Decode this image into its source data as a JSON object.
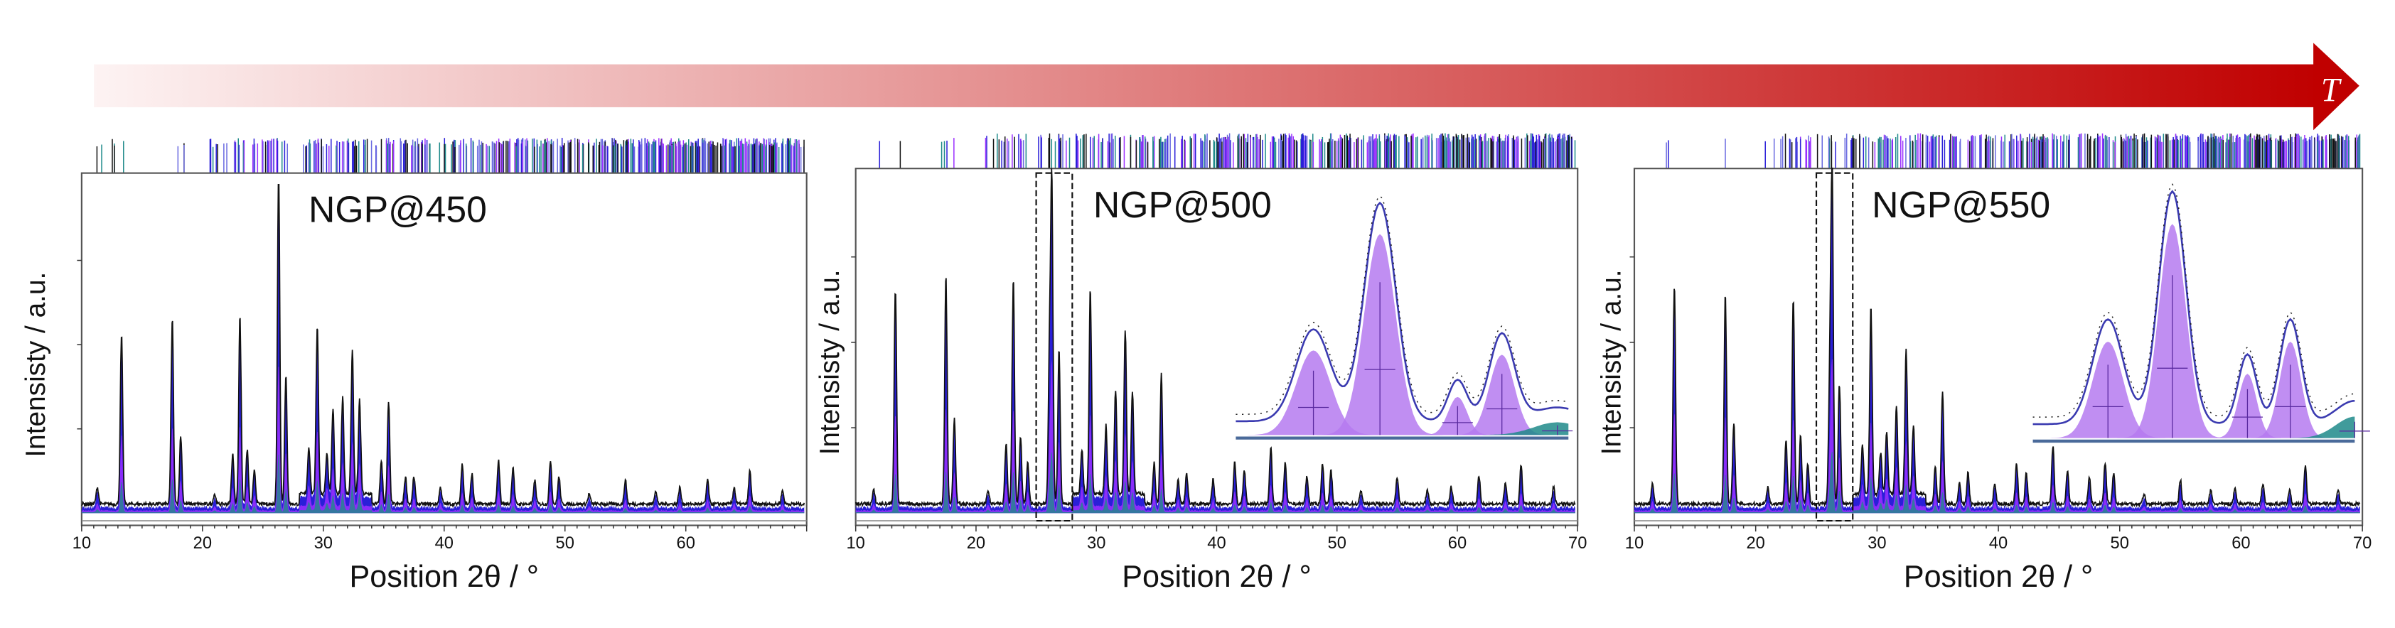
{
  "arrow": {
    "label": "T",
    "color_start": "#fdf3f3",
    "color_end": "#c00000"
  },
  "colors": {
    "observed": "#2a1fd8",
    "phase_a": "#9b30ff",
    "phase_b": "#1e8a8a",
    "line": "#111111",
    "inset_fill": "#b57af0"
  },
  "chart_data": [
    {
      "type": "area",
      "title": "NGP@450",
      "xlabel": "Position 2θ / °",
      "ylabel": "Intensisty / a.u.",
      "xlim": [
        10,
        70
      ],
      "ylim": [
        0,
        1
      ],
      "xticks": [
        "10",
        "20",
        "30",
        "40",
        "50",
        "60"
      ],
      "peaks": [
        [
          11.3,
          0.05
        ],
        [
          13.3,
          0.5
        ],
        [
          17.5,
          0.55
        ],
        [
          18.2,
          0.2
        ],
        [
          21,
          0.03
        ],
        [
          22.5,
          0.15
        ],
        [
          23.1,
          0.56
        ],
        [
          23.7,
          0.16
        ],
        [
          24.3,
          0.1
        ],
        [
          26.3,
          0.97
        ],
        [
          26.9,
          0.38
        ],
        [
          28.8,
          0.14
        ],
        [
          29.5,
          0.5
        ],
        [
          30.3,
          0.12
        ],
        [
          30.8,
          0.25
        ],
        [
          31.6,
          0.29
        ],
        [
          32.4,
          0.43
        ],
        [
          33.0,
          0.28
        ],
        [
          34.8,
          0.13
        ],
        [
          35.4,
          0.3
        ],
        [
          36.8,
          0.08
        ],
        [
          37.5,
          0.08
        ],
        [
          39.7,
          0.05
        ],
        [
          41.5,
          0.12
        ],
        [
          42.3,
          0.09
        ],
        [
          44.5,
          0.13
        ],
        [
          45.7,
          0.11
        ],
        [
          47.5,
          0.07
        ],
        [
          48.8,
          0.13
        ],
        [
          49.5,
          0.08
        ],
        [
          52,
          0.03
        ],
        [
          55,
          0.07
        ],
        [
          57.5,
          0.04
        ],
        [
          59.5,
          0.05
        ],
        [
          61.8,
          0.07
        ],
        [
          64,
          0.05
        ],
        [
          65.3,
          0.1
        ],
        [
          68,
          0.04
        ]
      ],
      "inset": null
    },
    {
      "type": "area",
      "title": "NGP@500",
      "xlabel": "Position 2θ / °",
      "ylabel": "Intensisty / a.u.",
      "xlim": [
        10,
        70
      ],
      "ylim": [
        0,
        1
      ],
      "xticks": [
        "10",
        "20",
        "30",
        "40",
        "50",
        "60",
        "70"
      ],
      "peaks": [
        [
          11.5,
          0.04
        ],
        [
          13.3,
          0.63
        ],
        [
          17.5,
          0.67
        ],
        [
          18.2,
          0.25
        ],
        [
          21,
          0.04
        ],
        [
          22.5,
          0.18
        ],
        [
          23.1,
          0.66
        ],
        [
          23.7,
          0.2
        ],
        [
          24.3,
          0.12
        ],
        [
          26.1,
          0.4
        ],
        [
          26.3,
          0.93
        ],
        [
          26.9,
          0.45
        ],
        [
          28.8,
          0.13
        ],
        [
          29.5,
          0.6
        ],
        [
          30.8,
          0.2
        ],
        [
          31.6,
          0.3
        ],
        [
          32.4,
          0.48
        ],
        [
          33.0,
          0.3
        ],
        [
          34.8,
          0.12
        ],
        [
          35.4,
          0.38
        ],
        [
          36.8,
          0.07
        ],
        [
          37.5,
          0.09
        ],
        [
          39.7,
          0.07
        ],
        [
          41.5,
          0.12
        ],
        [
          42.3,
          0.1
        ],
        [
          44.5,
          0.17
        ],
        [
          45.7,
          0.12
        ],
        [
          47.5,
          0.08
        ],
        [
          48.8,
          0.12
        ],
        [
          49.5,
          0.1
        ],
        [
          52,
          0.04
        ],
        [
          55,
          0.08
        ],
        [
          57.5,
          0.04
        ],
        [
          59.5,
          0.05
        ],
        [
          61.8,
          0.08
        ],
        [
          64,
          0.06
        ],
        [
          65.3,
          0.11
        ],
        [
          68,
          0.05
        ]
      ],
      "zoom_region": [
        25,
        28
      ],
      "inset": {
        "components": [
          [
            25.7,
            0.4,
            0.22
          ],
          [
            26.3,
            0.95,
            0.2
          ],
          [
            27.0,
            0.18,
            0.12
          ],
          [
            27.4,
            0.38,
            0.16
          ],
          [
            27.9,
            0.06,
            0.3
          ]
        ]
      }
    },
    {
      "type": "area",
      "title": "NGP@550",
      "xlabel": "Position 2θ / °",
      "ylabel": "Intensisty / a.u.",
      "xlim": [
        10,
        70
      ],
      "ylim": [
        0,
        1
      ],
      "xticks": [
        "10",
        "20",
        "30",
        "40",
        "50",
        "60",
        "70"
      ],
      "peaks": [
        [
          11.5,
          0.06
        ],
        [
          13.3,
          0.64
        ],
        [
          17.5,
          0.62
        ],
        [
          18.2,
          0.24
        ],
        [
          21,
          0.05
        ],
        [
          22.5,
          0.19
        ],
        [
          23.1,
          0.6
        ],
        [
          23.7,
          0.2
        ],
        [
          24.3,
          0.12
        ],
        [
          26.1,
          0.35
        ],
        [
          26.3,
          0.98
        ],
        [
          26.9,
          0.35
        ],
        [
          28.8,
          0.14
        ],
        [
          29.5,
          0.55
        ],
        [
          30.3,
          0.12
        ],
        [
          30.8,
          0.18
        ],
        [
          31.6,
          0.26
        ],
        [
          32.4,
          0.42
        ],
        [
          33.0,
          0.2
        ],
        [
          34.8,
          0.11
        ],
        [
          35.4,
          0.33
        ],
        [
          36.8,
          0.06
        ],
        [
          37.5,
          0.09
        ],
        [
          39.7,
          0.06
        ],
        [
          41.5,
          0.12
        ],
        [
          42.3,
          0.09
        ],
        [
          44.5,
          0.17
        ],
        [
          45.7,
          0.1
        ],
        [
          47.5,
          0.08
        ],
        [
          48.8,
          0.12
        ],
        [
          49.5,
          0.09
        ],
        [
          52,
          0.03
        ],
        [
          55,
          0.07
        ],
        [
          57.5,
          0.04
        ],
        [
          59.5,
          0.05
        ],
        [
          61.8,
          0.06
        ],
        [
          64,
          0.04
        ],
        [
          65.3,
          0.11
        ],
        [
          68,
          0.04
        ]
      ],
      "zoom_region": [
        25,
        28
      ],
      "inset": {
        "components": [
          [
            25.7,
            0.45,
            0.2
          ],
          [
            26.3,
            1.0,
            0.18
          ],
          [
            27.0,
            0.3,
            0.12
          ],
          [
            27.4,
            0.45,
            0.14
          ],
          [
            28.0,
            0.1,
            0.25
          ]
        ]
      }
    }
  ]
}
